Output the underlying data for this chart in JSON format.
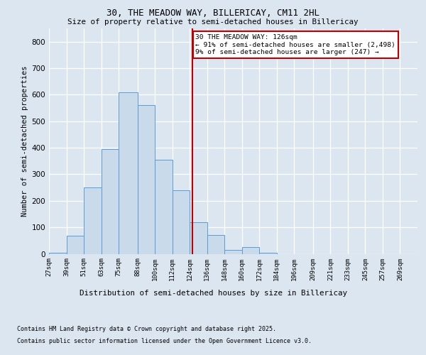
{
  "title_line1": "30, THE MEADOW WAY, BILLERICAY, CM11 2HL",
  "title_line2": "Size of property relative to semi-detached houses in Billericay",
  "xlabel": "Distribution of semi-detached houses by size in Billericay",
  "ylabel": "Number of semi-detached properties",
  "categories": [
    "27sqm",
    "39sqm",
    "51sqm",
    "63sqm",
    "75sqm",
    "88sqm",
    "100sqm",
    "112sqm",
    "124sqm",
    "136sqm",
    "148sqm",
    "160sqm",
    "172sqm",
    "184sqm",
    "196sqm",
    "209sqm",
    "221sqm",
    "233sqm",
    "245sqm",
    "257sqm",
    "269sqm"
  ],
  "bin_edges": [
    27,
    39,
    51,
    63,
    75,
    88,
    100,
    112,
    124,
    136,
    148,
    160,
    172,
    184,
    196,
    209,
    221,
    233,
    245,
    257,
    269,
    281
  ],
  "hist_values": [
    5,
    68,
    250,
    395,
    608,
    560,
    355,
    240,
    120,
    70,
    15,
    25,
    5,
    0,
    0,
    0,
    0,
    0,
    0,
    0,
    0
  ],
  "property_line_x": 126,
  "annotation_text": "30 THE MEADOW WAY: 126sqm\n← 91% of semi-detached houses are smaller (2,498)\n9% of semi-detached houses are larger (247) →",
  "bar_color": "#c9daea",
  "bar_edge_color": "#5b9bd5",
  "vline_color": "#c00000",
  "background_color": "#dce6f0",
  "grid_color": "#ffffff",
  "ylim": [
    0,
    850
  ],
  "yticks": [
    0,
    100,
    200,
    300,
    400,
    500,
    600,
    700,
    800
  ],
  "footer_line1": "Contains HM Land Registry data © Crown copyright and database right 2025.",
  "footer_line2": "Contains public sector information licensed under the Open Government Licence v3.0."
}
